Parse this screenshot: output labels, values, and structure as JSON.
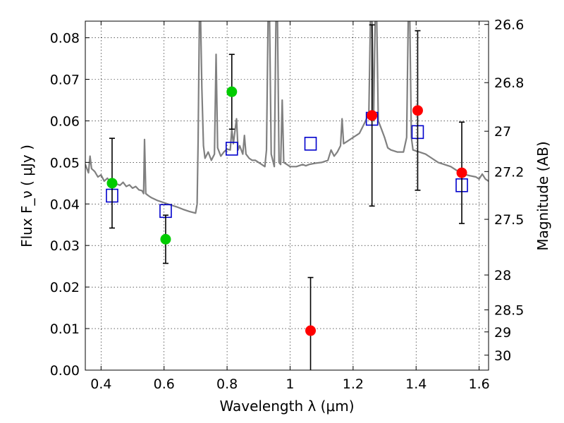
{
  "chart_data": {
    "type": "scatter",
    "xlabel": "Wavelength  λ (μm)",
    "ylabel": "Flux  F_ν  ( μJy )",
    "y2label": "Magnitude (AB)",
    "xlim": [
      0.35,
      1.63
    ],
    "ylim": [
      0.0,
      0.084
    ],
    "grid": true,
    "x_ticks": [
      0.4,
      0.6,
      0.8,
      1.0,
      1.2,
      1.4,
      1.6
    ],
    "x_tick_labels": [
      "0.4",
      "0.6",
      "0.8",
      "1",
      "1.2",
      "1.4",
      "1.6"
    ],
    "y_ticks": [
      0.0,
      0.01,
      0.02,
      0.03,
      0.04,
      0.05,
      0.06,
      0.07,
      0.08
    ],
    "y_tick_labels": [
      "0.00",
      "0.01",
      "0.02",
      "0.03",
      "0.04",
      "0.05",
      "0.06",
      "0.07",
      "0.08"
    ],
    "y2_ticks": [
      {
        "label": "26.6",
        "flux": 0.0832
      },
      {
        "label": "26.8",
        "flux": 0.0692
      },
      {
        "label": "27",
        "flux": 0.0575
      },
      {
        "label": "27.2",
        "flux": 0.0478
      },
      {
        "label": "27.5",
        "flux": 0.0363
      },
      {
        "label": "28",
        "flux": 0.0229
      },
      {
        "label": "28.5",
        "flux": 0.0145
      },
      {
        "label": "29",
        "flux": 0.0092
      },
      {
        "label": "30",
        "flux": 0.0036
      }
    ],
    "series": [
      {
        "color": "#808080",
        "style": "line",
        "points": [
          [
            0.35,
            0.0495
          ],
          [
            0.36,
            0.0475
          ],
          [
            0.365,
            0.0515
          ],
          [
            0.37,
            0.0485
          ],
          [
            0.38,
            0.0478
          ],
          [
            0.39,
            0.0465
          ],
          [
            0.4,
            0.047
          ],
          [
            0.41,
            0.0455
          ],
          [
            0.42,
            0.0462
          ],
          [
            0.43,
            0.0452
          ],
          [
            0.44,
            0.0458
          ],
          [
            0.45,
            0.0448
          ],
          [
            0.46,
            0.0445
          ],
          [
            0.47,
            0.0452
          ],
          [
            0.48,
            0.0442
          ],
          [
            0.49,
            0.0446
          ],
          [
            0.5,
            0.0438
          ],
          [
            0.51,
            0.0442
          ],
          [
            0.52,
            0.0434
          ],
          [
            0.53,
            0.0432
          ],
          [
            0.535,
            0.0425
          ],
          [
            0.538,
            0.0555
          ],
          [
            0.542,
            0.0425
          ],
          [
            0.55,
            0.042
          ],
          [
            0.56,
            0.0415
          ],
          [
            0.58,
            0.0408
          ],
          [
            0.6,
            0.0403
          ],
          [
            0.62,
            0.0398
          ],
          [
            0.64,
            0.0393
          ],
          [
            0.66,
            0.0387
          ],
          [
            0.68,
            0.0382
          ],
          [
            0.7,
            0.0378
          ],
          [
            0.705,
            0.04
          ],
          [
            0.708,
            0.055
          ],
          [
            0.712,
            0.084
          ],
          [
            0.716,
            0.084
          ],
          [
            0.72,
            0.068
          ],
          [
            0.725,
            0.054
          ],
          [
            0.73,
            0.051
          ],
          [
            0.74,
            0.0525
          ],
          [
            0.75,
            0.0505
          ],
          [
            0.76,
            0.052
          ],
          [
            0.765,
            0.076
          ],
          [
            0.77,
            0.0535
          ],
          [
            0.78,
            0.0515
          ],
          [
            0.79,
            0.0525
          ],
          [
            0.8,
            0.0532
          ],
          [
            0.81,
            0.053
          ],
          [
            0.815,
            0.058
          ],
          [
            0.82,
            0.0545
          ],
          [
            0.83,
            0.0605
          ],
          [
            0.835,
            0.053
          ],
          [
            0.84,
            0.054
          ],
          [
            0.85,
            0.052
          ],
          [
            0.855,
            0.0565
          ],
          [
            0.86,
            0.052
          ],
          [
            0.87,
            0.051
          ],
          [
            0.88,
            0.0505
          ],
          [
            0.89,
            0.0505
          ],
          [
            0.9,
            0.05
          ],
          [
            0.91,
            0.0495
          ],
          [
            0.92,
            0.049
          ],
          [
            0.925,
            0.053
          ],
          [
            0.93,
            0.084
          ],
          [
            0.935,
            0.084
          ],
          [
            0.94,
            0.052
          ],
          [
            0.95,
            0.049
          ],
          [
            0.955,
            0.084
          ],
          [
            0.96,
            0.084
          ],
          [
            0.965,
            0.05
          ],
          [
            0.97,
            0.0495
          ],
          [
            0.975,
            0.065
          ],
          [
            0.98,
            0.05
          ],
          [
            0.99,
            0.0495
          ],
          [
            1.0,
            0.049
          ],
          [
            1.02,
            0.049
          ],
          [
            1.04,
            0.0495
          ],
          [
            1.05,
            0.0492
          ],
          [
            1.06,
            0.0495
          ],
          [
            1.08,
            0.0498
          ],
          [
            1.1,
            0.05
          ],
          [
            1.12,
            0.0505
          ],
          [
            1.13,
            0.053
          ],
          [
            1.14,
            0.0515
          ],
          [
            1.15,
            0.0525
          ],
          [
            1.16,
            0.054
          ],
          [
            1.165,
            0.0605
          ],
          [
            1.17,
            0.0545
          ],
          [
            1.18,
            0.055
          ],
          [
            1.2,
            0.056
          ],
          [
            1.22,
            0.057
          ],
          [
            1.24,
            0.06
          ],
          [
            1.25,
            0.062
          ],
          [
            1.255,
            0.084
          ],
          [
            1.26,
            0.084
          ],
          [
            1.265,
            0.06
          ],
          [
            1.27,
            0.084
          ],
          [
            1.275,
            0.084
          ],
          [
            1.28,
            0.06
          ],
          [
            1.29,
            0.058
          ],
          [
            1.3,
            0.056
          ],
          [
            1.31,
            0.0535
          ],
          [
            1.32,
            0.053
          ],
          [
            1.34,
            0.0525
          ],
          [
            1.36,
            0.0525
          ],
          [
            1.37,
            0.056
          ],
          [
            1.375,
            0.084
          ],
          [
            1.38,
            0.084
          ],
          [
            1.385,
            0.056
          ],
          [
            1.39,
            0.053
          ],
          [
            1.41,
            0.0525
          ],
          [
            1.43,
            0.052
          ],
          [
            1.45,
            0.051
          ],
          [
            1.47,
            0.05
          ],
          [
            1.49,
            0.0495
          ],
          [
            1.51,
            0.049
          ],
          [
            1.53,
            0.048
          ],
          [
            1.55,
            0.0472
          ],
          [
            1.57,
            0.0468
          ],
          [
            1.59,
            0.0465
          ],
          [
            1.6,
            0.046
          ],
          [
            1.61,
            0.0472
          ],
          [
            1.62,
            0.046
          ],
          [
            1.63,
            0.0455
          ]
        ]
      },
      {
        "color": "#0000cc",
        "style": "open-square",
        "points": [
          [
            0.435,
            0.042
          ],
          [
            0.605,
            0.0383
          ],
          [
            0.815,
            0.0533
          ],
          [
            1.065,
            0.0545
          ],
          [
            1.26,
            0.0605
          ],
          [
            1.405,
            0.0573
          ],
          [
            1.545,
            0.0445
          ]
        ]
      },
      {
        "color": "#00cc00",
        "style": "filled-circle",
        "points": [
          {
            "x": 0.435,
            "y": 0.045,
            "yerr": 0.0108
          },
          {
            "x": 0.605,
            "y": 0.0315,
            "yerr": 0.0058
          },
          {
            "x": 0.815,
            "y": 0.067,
            "yerr": 0.009
          }
        ]
      },
      {
        "color": "#ff0000",
        "style": "filled-circle",
        "points": [
          {
            "x": 1.065,
            "y": 0.0095,
            "yerr": 0.0128
          },
          {
            "x": 1.26,
            "y": 0.0613,
            "yerr": 0.0218
          },
          {
            "x": 1.405,
            "y": 0.0625,
            "yerr": 0.0192
          },
          {
            "x": 1.545,
            "y": 0.0475,
            "yerr": 0.0122
          }
        ]
      }
    ]
  }
}
